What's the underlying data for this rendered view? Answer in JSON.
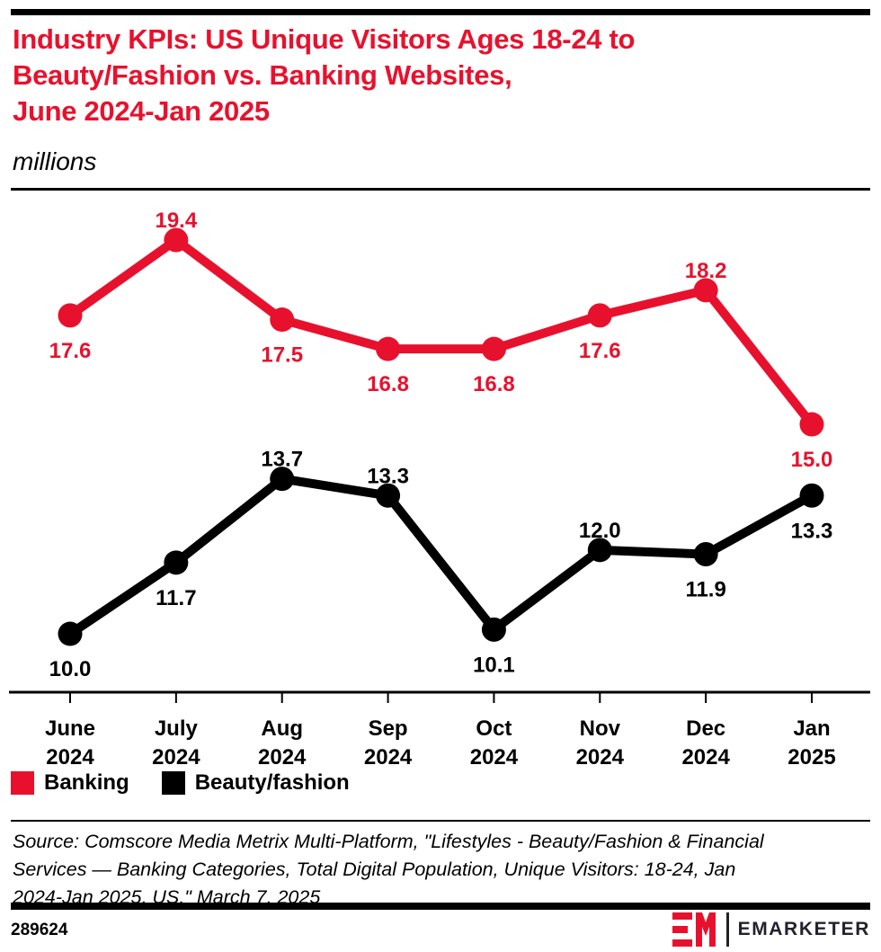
{
  "header": {
    "title_lines": [
      "Industry KPIs: US Unique Visitors Ages 18-24 to",
      "Beauty/Fashion vs. Banking Websites,",
      "June 2024-Jan 2025"
    ],
    "subtitle": "millions"
  },
  "chart_data": {
    "type": "line",
    "title": "Industry KPIs: US Unique Visitors Ages 18-24 to Beauty/Fashion vs. Banking Websites, June 2024-Jan 2025",
    "unit_label": "millions",
    "categories": [
      "June 2024",
      "July 2024",
      "Aug 2024",
      "Sep 2024",
      "Oct 2024",
      "Nov 2024",
      "Dec 2024",
      "Jan 2025"
    ],
    "series": [
      {
        "name": "Banking",
        "color": "#e8112d",
        "values": [
          17.6,
          19.4,
          17.5,
          16.8,
          16.8,
          17.6,
          18.2,
          15.0
        ],
        "label_positions": [
          "below",
          "above",
          "below",
          "below",
          "below",
          "below",
          "above",
          "below"
        ]
      },
      {
        "name": "Beauty/fashion",
        "color": "#000000",
        "values": [
          10.0,
          11.7,
          13.7,
          13.3,
          10.1,
          12.0,
          11.9,
          13.3
        ],
        "label_positions": [
          "below",
          "below",
          "above",
          "above",
          "below",
          "above",
          "below",
          "below"
        ]
      }
    ],
    "value_labels_shown": true,
    "grid": false,
    "y_axis_visible": false,
    "x_axis_line": true,
    "legend_position": "bottom-left",
    "approx_value_range": [
      8.6,
      20.5
    ]
  },
  "source": {
    "lines": [
      "Source: Comscore Media Metrix Multi-Platform, \"Lifestyles - Beauty/Fashion & Financial",
      "Services — Banking Categories, Total Digital Population, Unique Visitors: 18-24, Jan",
      "2024-Jan 2025, US,\" March 7, 2025"
    ]
  },
  "footer": {
    "chart_id": "289624",
    "brand": "EMARKETER"
  }
}
